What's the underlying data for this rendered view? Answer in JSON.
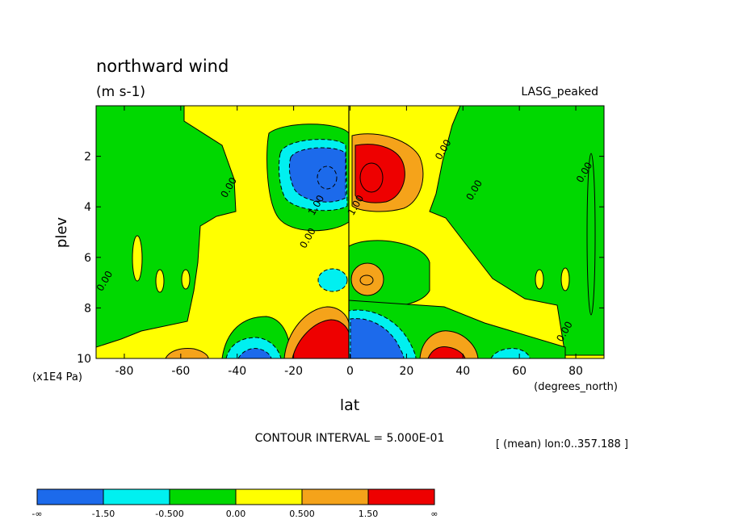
{
  "chart_data": {
    "type": "heatmap",
    "title": "northward wind",
    "units": "(m s-1)",
    "dataset": "LASG_peaked",
    "xlabel": "lat",
    "x_units": "(degrees_north)",
    "ylabel": "plev",
    "y_units": "(x1E4 Pa)",
    "xlim": [
      -90,
      90
    ],
    "ylim": [
      0,
      10
    ],
    "x_ticks": [
      -80,
      -60,
      -40,
      -20,
      0,
      20,
      40,
      60,
      80
    ],
    "y_ticks": [
      2,
      4,
      6,
      8,
      10
    ],
    "contour_interval_text": "CONTOUR INTERVAL = 5.000E-01",
    "subset_text": "[ (mean) lon:0..357.188 ]",
    "contour_labels": [
      {
        "text": "0.00",
        "lat": 34,
        "plev": 1.8
      },
      {
        "text": "0.00",
        "lat": -42,
        "plev": 3.3
      },
      {
        "text": "0.00",
        "lat": 45,
        "plev": 3.4
      },
      {
        "text": "0.00",
        "lat": 84,
        "plev": 2.7
      },
      {
        "text": "0.00",
        "lat": -14,
        "plev": 5.3
      },
      {
        "text": "0.00",
        "lat": -86,
        "plev": 7.0
      },
      {
        "text": "0.00",
        "lat": 77,
        "plev": 9.0
      },
      {
        "text": "1.00",
        "lat": -11,
        "plev": 4.0
      },
      {
        "text": "1.00",
        "lat": 3,
        "plev": 4.0
      }
    ],
    "regions": [
      {
        "sign": "neg",
        "lat": -8,
        "plev": 3.0,
        "peak": -2.5
      },
      {
        "sign": "pos",
        "lat": 7,
        "plev": 3.0,
        "peak": 2.5
      },
      {
        "sign": "neg",
        "lat": -5,
        "plev": 7.0,
        "peak": -1.0
      },
      {
        "sign": "pos",
        "lat": 5,
        "plev": 7.0,
        "peak": 1.0
      },
      {
        "sign": "pos",
        "lat": -7,
        "plev": 10.0,
        "peak": 3.5
      },
      {
        "sign": "neg",
        "lat": 8,
        "plev": 10.0,
        "peak": -3.5
      },
      {
        "sign": "neg",
        "lat": -34,
        "plev": 10.0,
        "peak": -2.0
      },
      {
        "sign": "pos",
        "lat": 33,
        "plev": 10.0,
        "peak": 2.0
      },
      {
        "sign": "pos",
        "lat": -57,
        "plev": 10.0,
        "peak": 1.0
      },
      {
        "sign": "neg",
        "lat": 59,
        "plev": 10.0,
        "peak": -1.0
      }
    ]
  },
  "colorbar": {
    "colors": [
      "#1c6aeb",
      "#00f0f0",
      "#00d800",
      "#ffff00",
      "#f5a31a",
      "#ee0000"
    ],
    "labels": [
      "-∞",
      "-1.50",
      "-0.500",
      "0.00",
      "0.500",
      "1.50",
      "∞"
    ]
  }
}
